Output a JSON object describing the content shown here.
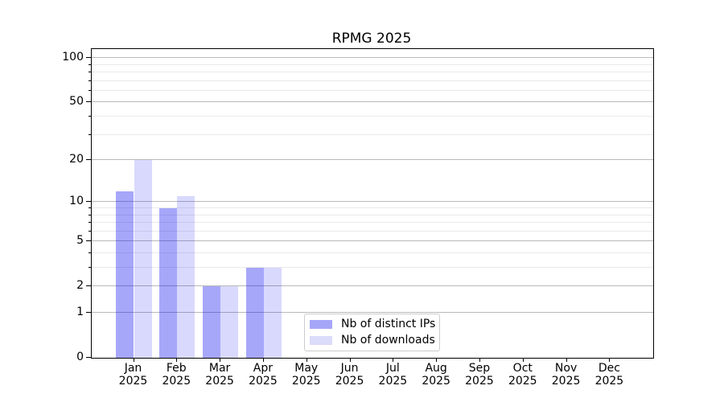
{
  "title": "RPMG 2025",
  "chart_data": {
    "type": "bar",
    "title": "RPMG 2025",
    "categories": [
      "Jan",
      "Feb",
      "Mar",
      "Apr",
      "May",
      "Jun",
      "Jul",
      "Aug",
      "Sep",
      "Oct",
      "Nov",
      "Dec"
    ],
    "category_year": "2025",
    "series": [
      {
        "name": "Nb of distinct IPs",
        "color": "rgba(0,0,240,0.345)",
        "legend_color": "#a6a6f7",
        "values": [
          12,
          9,
          2,
          3,
          0,
          0,
          0,
          0,
          0,
          0,
          0,
          0
        ]
      },
      {
        "name": "Nb of downloads",
        "color": "rgba(0,0,240,0.15)",
        "legend_color": "#dbdbfa",
        "values": [
          20,
          11,
          2,
          3,
          0,
          0,
          0,
          0,
          0,
          0,
          0,
          0
        ]
      }
    ],
    "xlabel": "",
    "ylabel": "",
    "yscale": "log1p",
    "ylim": [
      0,
      115
    ],
    "y_major_ticks": [
      0,
      1,
      2,
      5,
      10,
      20,
      50,
      100
    ],
    "y_minor_ticks": [
      3,
      4,
      6,
      7,
      8,
      9,
      30,
      40,
      60,
      70,
      80,
      90
    ],
    "grid": true,
    "legend_position": "lower center",
    "colors": {
      "major_grid": "#b9b9b9",
      "minor_grid": "#e9e9e9",
      "axis": "#000000",
      "text": "#000000",
      "background": "#ffffff"
    }
  }
}
